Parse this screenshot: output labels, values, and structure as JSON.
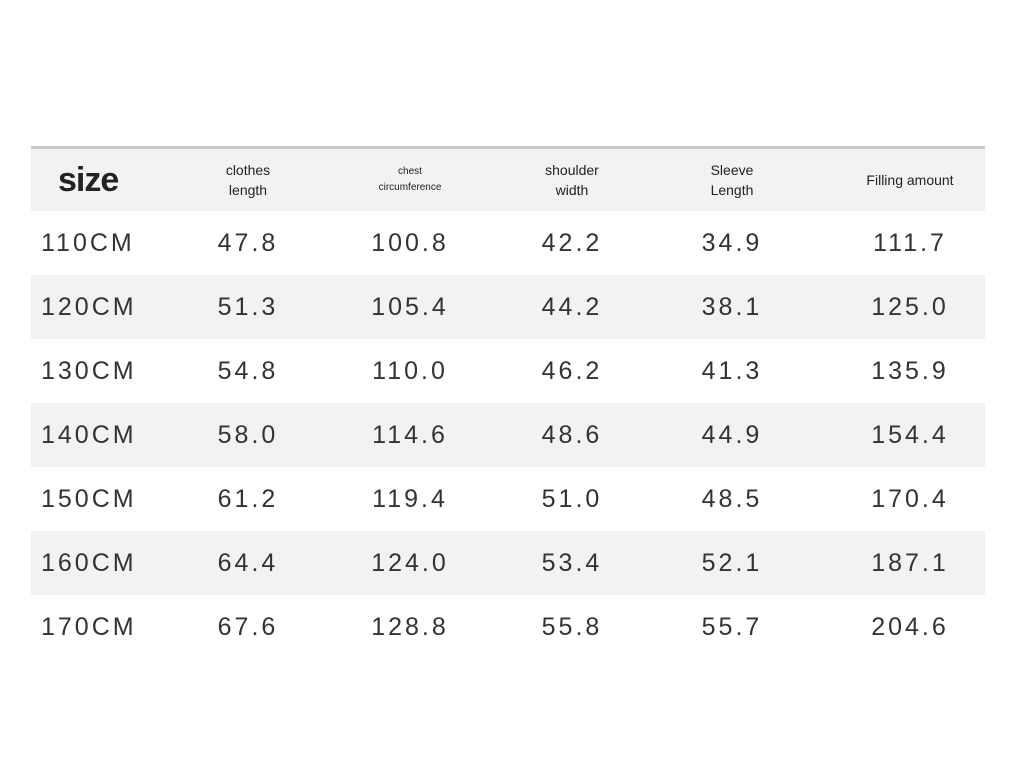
{
  "table": {
    "header": [
      [
        "size"
      ],
      [
        "clothes",
        "length"
      ],
      [
        "chest",
        "circumference"
      ],
      [
        "shoulder",
        "width"
      ],
      [
        "Sleeve",
        "Length"
      ],
      [
        "Filling amount"
      ]
    ],
    "rows": [
      [
        "110CM",
        "47.8",
        "100.8",
        "42.2",
        "34.9",
        "111.7"
      ],
      [
        "120CM",
        "51.3",
        "105.4",
        "44.2",
        "38.1",
        "125.0"
      ],
      [
        "130CM",
        "54.8",
        "110.0",
        "46.2",
        "41.3",
        "135.9"
      ],
      [
        "140CM",
        "58.0",
        "114.6",
        "48.6",
        "44.9",
        "154.4"
      ],
      [
        "150CM",
        "61.2",
        "119.4",
        "51.0",
        "48.5",
        "170.4"
      ],
      [
        "160CM",
        "64.4",
        "124.0",
        "53.4",
        "52.1",
        "187.1"
      ],
      [
        "170CM",
        "67.6",
        "128.8",
        "55.8",
        "55.7",
        "204.6"
      ]
    ]
  }
}
